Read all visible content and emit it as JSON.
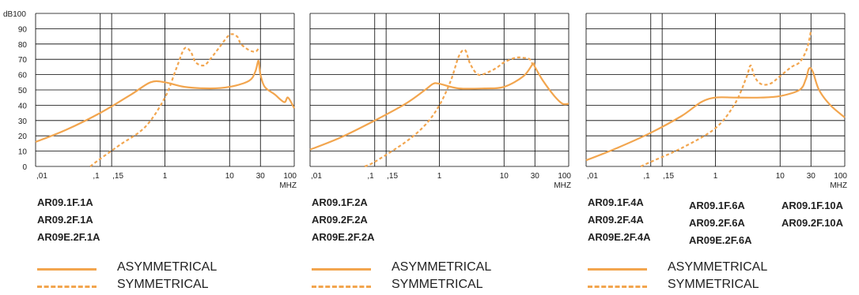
{
  "y_unit": "dB",
  "x_unit": "MHZ",
  "colors": {
    "curve": "#F2A54E",
    "grid": "#000000"
  },
  "chart_data": [
    {
      "type": "line",
      "y_axis": {
        "range": [
          0,
          100
        ],
        "ticks": [
          0,
          10,
          20,
          30,
          40,
          50,
          60,
          70,
          80,
          90,
          100
        ],
        "log": false
      },
      "x_axis": {
        "scale": "log",
        "range": [
          0.01,
          100
        ],
        "tick_labels": [
          ",01",
          ",1",
          ",15",
          "1",
          "10",
          "30",
          "100"
        ],
        "tick_values": [
          0.01,
          0.1,
          0.15,
          1,
          10,
          30,
          100
        ]
      },
      "grid": true,
      "series": [
        {
          "name": "ASYMMETRICAL",
          "style": "solid",
          "x": [
            0.01,
            0.03,
            0.1,
            0.3,
            0.6,
            1,
            2,
            5,
            10,
            20,
            25,
            28,
            30,
            35,
            50,
            70,
            80,
            100
          ],
          "y": [
            16,
            24,
            35,
            47,
            55,
            55,
            52,
            51,
            52,
            56,
            62,
            69,
            60,
            52,
            47,
            42,
            45,
            38
          ]
        },
        {
          "name": "SYMMETRICAL",
          "style": "dashed",
          "x": [
            0.07,
            0.1,
            0.2,
            0.5,
            1,
            1.5,
            2,
            2.5,
            3,
            4,
            5,
            7,
            10,
            13,
            15,
            20,
            25,
            28
          ],
          "y": [
            0,
            5,
            14,
            26,
            45,
            64,
            77,
            75,
            68,
            66,
            70,
            78,
            86,
            85,
            80,
            76,
            75,
            77
          ]
        }
      ]
    },
    {
      "type": "line",
      "y_axis": {
        "range": [
          0,
          100
        ],
        "log": false
      },
      "x_axis": {
        "scale": "log",
        "range": [
          0.01,
          100
        ],
        "tick_labels": [
          ",01",
          ",1",
          ",15",
          "1",
          "10",
          "30",
          "100"
        ],
        "tick_values": [
          0.01,
          0.1,
          0.15,
          1,
          10,
          30,
          100
        ]
      },
      "grid": true,
      "series": [
        {
          "name": "ASYMMETRICAL",
          "style": "solid",
          "x": [
            0.01,
            0.03,
            0.1,
            0.3,
            0.6,
            0.8,
            1,
            2,
            5,
            10,
            20,
            28,
            30,
            40,
            60,
            80,
            100
          ],
          "y": [
            11,
            19,
            30,
            41,
            50,
            54,
            54,
            51,
            51,
            52,
            59,
            67,
            65,
            56,
            46,
            41,
            41
          ]
        },
        {
          "name": "SYMMETRICAL",
          "style": "dashed",
          "x": [
            0.07,
            0.1,
            0.3,
            0.6,
            1,
            1.5,
            2,
            2.5,
            3,
            4,
            6,
            8,
            10,
            15,
            20,
            25,
            28
          ],
          "y": [
            0,
            3,
            16,
            27,
            40,
            56,
            72,
            76,
            67,
            60,
            62,
            65,
            68,
            71,
            71,
            70,
            66
          ]
        }
      ]
    },
    {
      "type": "line",
      "y_axis": {
        "range": [
          0,
          100
        ],
        "log": false
      },
      "x_axis": {
        "scale": "log",
        "range": [
          0.01,
          100
        ],
        "tick_labels": [
          ",01",
          ",1",
          ",15",
          "1",
          "10",
          "30",
          "100"
        ],
        "tick_values": [
          0.01,
          0.1,
          0.15,
          1,
          10,
          30,
          100
        ]
      },
      "grid": true,
      "series": [
        {
          "name": "ASYMMETRICAL",
          "style": "solid",
          "x": [
            0.01,
            0.03,
            0.1,
            0.3,
            0.6,
            1,
            2,
            5,
            10,
            20,
            25,
            28,
            32,
            40,
            60,
            100
          ],
          "y": [
            4,
            12,
            22,
            33,
            42,
            45,
            45,
            45,
            46,
            50,
            57,
            64,
            62,
            50,
            40,
            32
          ]
        },
        {
          "name": "SYMMETRICAL",
          "style": "dashed",
          "x": [
            0.07,
            0.1,
            0.3,
            1,
            2,
            3,
            3.5,
            4,
            5,
            7,
            10,
            15,
            20,
            25,
            28,
            30
          ],
          "y": [
            0,
            3,
            12,
            25,
            41,
            58,
            66,
            59,
            54,
            54,
            59,
            65,
            68,
            75,
            82,
            89
          ]
        }
      ]
    }
  ],
  "panels": [
    {
      "model_columns": [
        [
          "AR09.1F.1A",
          "AR09.2F.1A",
          "AR09E.2F.1A"
        ]
      ]
    },
    {
      "model_columns": [
        [
          "AR09.1F.2A",
          "AR09.2F.2A",
          "AR09E.2F.2A"
        ]
      ]
    },
    {
      "model_columns": [
        [
          "AR09.1F.4A",
          "AR09.2F.4A",
          "AR09E.2F.4A"
        ],
        [
          "AR09.1F.6A",
          "AR09.2F.6A",
          "AR09E.2F.6A"
        ],
        [
          "AR09.1F.10A",
          "AR09.2F.10A"
        ]
      ]
    }
  ],
  "legend": {
    "asymmetrical": "ASYMMETRICAL",
    "symmetrical": "SYMMETRICAL"
  }
}
